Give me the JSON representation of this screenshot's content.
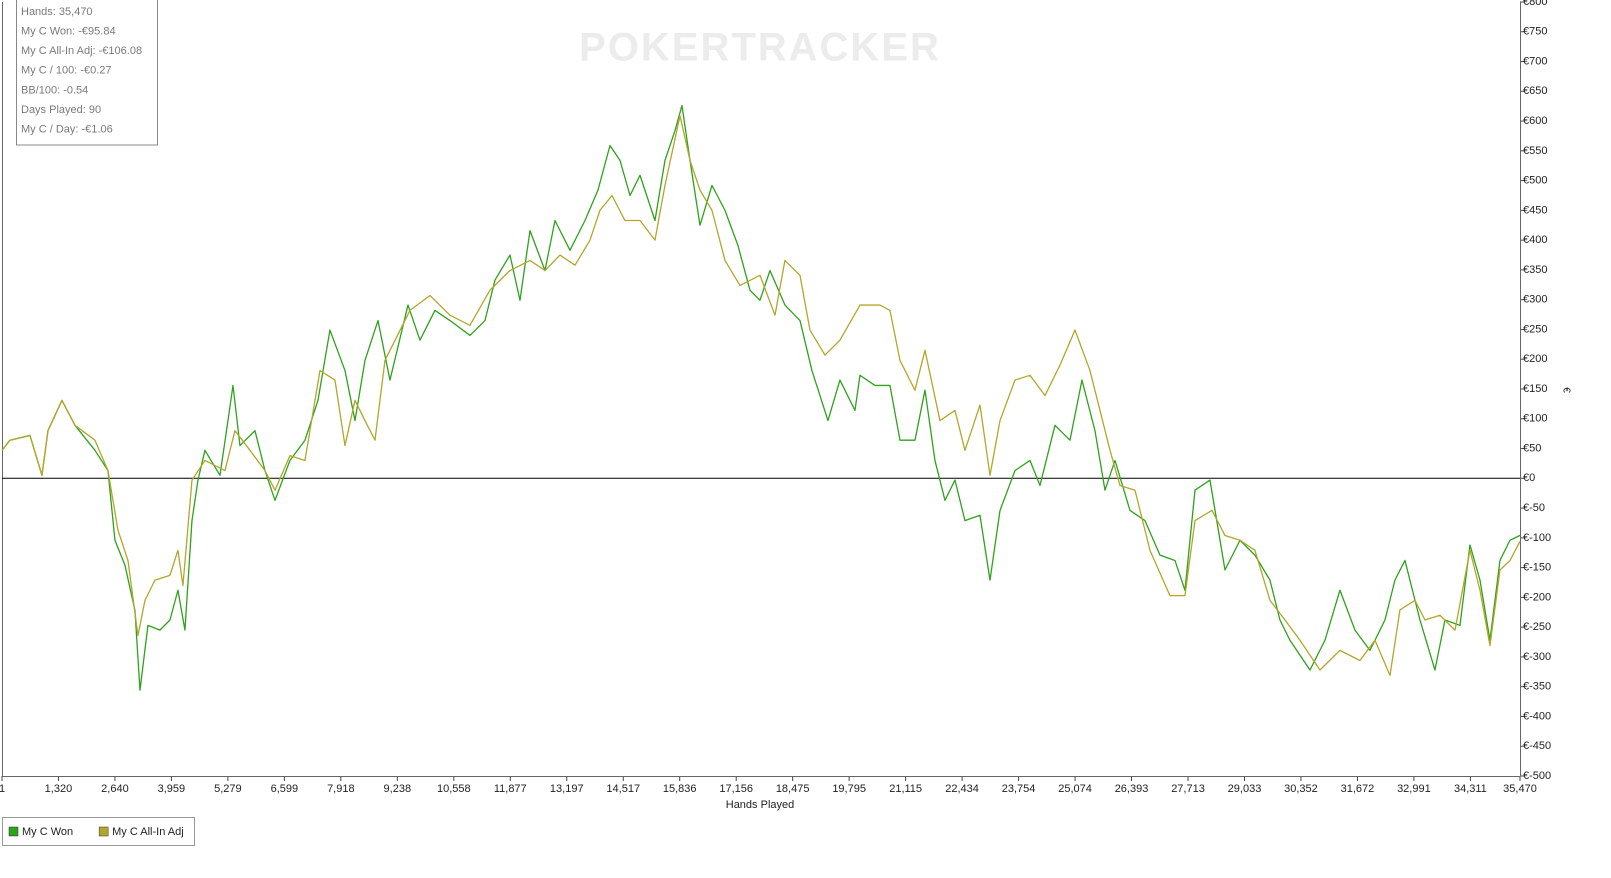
{
  "chart_data": {
    "type": "line",
    "watermark": "POKERTRACKER",
    "info_box": [
      "Hands: 35,470",
      "My C Won: -€95.84",
      "My C All-In Adj: -€106.08",
      "My C / 100: -€0.27",
      "BB/100: -0.54",
      "Days Played: 90",
      "My C / Day: -€1.06"
    ],
    "xlabel": "Hands Played",
    "ylabel": "€",
    "xlim": [
      1,
      35470
    ],
    "xticks": [
      1,
      {
        "value": 1320,
        "label": "1,320"
      },
      {
        "value": 2640,
        "label": "2,640"
      },
      {
        "value": 3959,
        "label": "3,959"
      },
      {
        "value": 5279,
        "label": "5,279"
      },
      {
        "value": 6599,
        "label": "6,599"
      },
      {
        "value": 7918,
        "label": "7,918"
      },
      {
        "value": 9238,
        "label": "9,238"
      },
      {
        "value": 10558,
        "label": "10,558"
      },
      {
        "value": 11877,
        "label": "11,877"
      },
      {
        "value": 13197,
        "label": "13,197"
      },
      {
        "value": 14517,
        "label": "14,517"
      },
      {
        "value": 15836,
        "label": "15,836"
      },
      {
        "value": 17156,
        "label": "17,156"
      },
      {
        "value": 18475,
        "label": "18,475"
      },
      {
        "value": 19795,
        "label": "19,795"
      },
      {
        "value": 21115,
        "label": "21,115"
      },
      {
        "value": 22434,
        "label": "22,434"
      },
      {
        "value": 23754,
        "label": "23,754"
      },
      {
        "value": 25074,
        "label": "25,074"
      },
      {
        "value": 26393,
        "label": "26,393"
      },
      {
        "value": 27713,
        "label": "27,713"
      },
      {
        "value": 29033,
        "label": "29,033"
      },
      {
        "value": 30352,
        "label": "30,352"
      },
      {
        "value": 31672,
        "label": "31,672"
      },
      {
        "value": 32991,
        "label": "32,991"
      },
      {
        "value": 34311,
        "label": "34,311"
      },
      {
        "value": 35470,
        "label": "35,470"
      }
    ],
    "ylim": [
      -500,
      800
    ],
    "yticks": [
      {
        "value": -500,
        "label": "€-500"
      },
      {
        "value": -450,
        "label": "€-450"
      },
      {
        "value": -400,
        "label": "€-400"
      },
      {
        "value": -350,
        "label": "€-350"
      },
      {
        "value": -300,
        "label": "€-300"
      },
      {
        "value": -250,
        "label": "€-250"
      },
      {
        "value": -200,
        "label": "€-200"
      },
      {
        "value": -150,
        "label": "€-150"
      },
      {
        "value": -100,
        "label": "€-100"
      },
      {
        "value": -50,
        "label": "€-50"
      },
      {
        "value": 0,
        "label": "€0"
      },
      {
        "value": 50,
        "label": "€50"
      },
      {
        "value": 100,
        "label": "€100"
      },
      {
        "value": 150,
        "label": "€150"
      },
      {
        "value": 200,
        "label": "€200"
      },
      {
        "value": 250,
        "label": "€250"
      },
      {
        "value": 300,
        "label": "€300"
      },
      {
        "value": 350,
        "label": "€350"
      },
      {
        "value": 400,
        "label": "€400"
      },
      {
        "value": 450,
        "label": "€450"
      },
      {
        "value": 500,
        "label": "€500"
      },
      {
        "value": 550,
        "label": "€550"
      },
      {
        "value": 600,
        "label": "€600"
      },
      {
        "value": 650,
        "label": "€650"
      },
      {
        "value": 700,
        "label": "€700"
      },
      {
        "value": 750,
        "label": "€750"
      },
      {
        "value": 800,
        "label": "€800"
      }
    ],
    "zero_line": true,
    "grid": false,
    "legend": "bottom-left",
    "series": [
      {
        "name": "My C Won",
        "color": "#2ea21c",
        "x": [
          1,
          187,
          654,
          935,
          1075,
          1402,
          1706,
          2173,
          2477,
          2640,
          2874,
          3108,
          3225,
          3411,
          3692,
          3925,
          4112,
          4276,
          4440,
          4580,
          4743,
          5094,
          5281,
          5398,
          5561,
          5912,
          6145,
          6379,
          6729,
          7080,
          7384,
          7664,
          8015,
          8249,
          8482,
          8786,
          9066,
          9487,
          9767,
          10117,
          10468,
          10935,
          11286,
          11520,
          11870,
          12104,
          12338,
          12688,
          12922,
          13272,
          13623,
          13926,
          14207,
          14441,
          14675,
          14908,
          15258,
          15492,
          15726,
          15889,
          16076,
          16310,
          16590,
          16894,
          17197,
          17478,
          17711,
          17945,
          18295,
          18646,
          18926,
          19300,
          19580,
          19931,
          20048,
          20398,
          20749,
          20983,
          21333,
          21567,
          21800,
          22034,
          22268,
          22501,
          22852,
          23086,
          23320,
          23670,
          24021,
          24254,
          24605,
          24955,
          25235,
          25539,
          25773,
          26007,
          26357,
          26707,
          27058,
          27408,
          27642,
          27876,
          28226,
          28577,
          28927,
          29277,
          29628,
          29861,
          30095,
          30562,
          30913,
          31263,
          31614,
          31964,
          32315,
          32548,
          32782,
          33133,
          33483,
          33717,
          34067,
          34301,
          34535,
          34768,
          35002,
          35236,
          35470
        ],
        "values": [
          47,
          64,
          72,
          5,
          80,
          131,
          89,
          47,
          13,
          -104,
          -146,
          -222,
          -356,
          -247,
          -255,
          -238,
          -188,
          -255,
          -71,
          -3,
          47,
          5,
          97,
          156,
          55,
          80,
          13,
          -37,
          30,
          64,
          131,
          249,
          181,
          97,
          198,
          265,
          165,
          291,
          232,
          282,
          265,
          240,
          265,
          333,
          375,
          299,
          416,
          349,
          433,
          383,
          433,
          484,
          559,
          534,
          475,
          509,
          433,
          534,
          584,
          626,
          534,
          425,
          492,
          450,
          391,
          316,
          299,
          349,
          291,
          265,
          181,
          97,
          165,
          114,
          173,
          156,
          156,
          64,
          64,
          148,
          30,
          -37,
          -3,
          -71,
          -62,
          -171,
          -54,
          13,
          30,
          -12,
          89,
          64,
          165,
          80,
          -20,
          30,
          -54,
          -71,
          -129,
          -138,
          -188,
          -20,
          -3,
          -154,
          -104,
          -129,
          -171,
          -238,
          -272,
          -322,
          -272,
          -188,
          -255,
          -289,
          -238,
          -171,
          -138,
          -238,
          -322,
          -238,
          -247,
          -112,
          -171,
          -272,
          -138,
          -104,
          -95.84
        ]
      },
      {
        "name": "My C All-In Adj",
        "color": "#b3a62a",
        "x": [
          1,
          187,
          654,
          935,
          1075,
          1402,
          1706,
          2173,
          2477,
          2710,
          2944,
          3178,
          3341,
          3575,
          3925,
          4112,
          4229,
          4440,
          4743,
          5211,
          5444,
          5795,
          6145,
          6379,
          6729,
          7080,
          7430,
          7781,
          8015,
          8249,
          8482,
          8716,
          8949,
          9533,
          10001,
          10468,
          10935,
          11403,
          11870,
          12338,
          12688,
          13038,
          13389,
          13739,
          13973,
          14253,
          14557,
          14908,
          15258,
          15492,
          15843,
          16076,
          16310,
          16590,
          16894,
          17244,
          17711,
          18062,
          18295,
          18646,
          18880,
          19230,
          19580,
          20048,
          20515,
          20749,
          20983,
          21333,
          21567,
          21917,
          22268,
          22501,
          22852,
          23086,
          23320,
          23670,
          24021,
          24371,
          24721,
          25072,
          25422,
          25656,
          25890,
          26123,
          26474,
          26824,
          27291,
          27642,
          27876,
          28273,
          28577,
          28927,
          29277,
          29628,
          29979,
          30329,
          30796,
          31263,
          31731,
          32081,
          32432,
          32665,
          33016,
          33250,
          33600,
          33951,
          34301,
          34535,
          34768,
          35002,
          35236,
          35470
        ],
        "values": [
          47,
          64,
          72,
          5,
          80,
          131,
          89,
          64,
          13,
          -87,
          -138,
          -264,
          -205,
          -171,
          -163,
          -121,
          -180,
          -3,
          30,
          13,
          80,
          47,
          13,
          -20,
          38,
          30,
          181,
          165,
          55,
          131,
          97,
          64,
          198,
          282,
          307,
          274,
          257,
          316,
          349,
          366,
          349,
          375,
          358,
          400,
          450,
          475,
          433,
          433,
          400,
          492,
          609,
          534,
          484,
          450,
          366,
          324,
          341,
          274,
          366,
          341,
          249,
          207,
          232,
          291,
          291,
          282,
          198,
          148,
          215,
          97,
          114,
          47,
          123,
          5,
          97,
          165,
          173,
          139,
          190,
          249,
          181,
          114,
          47,
          -12,
          -20,
          -121,
          -197,
          -197,
          -71,
          -54,
          -96,
          -104,
          -121,
          -205,
          -238,
          -272,
          -322,
          -289,
          -306,
          -272,
          -331,
          -221,
          -205,
          -238,
          -230,
          -255,
          -121,
          -188,
          -281,
          -154,
          -138,
          -106.08
        ]
      }
    ]
  }
}
